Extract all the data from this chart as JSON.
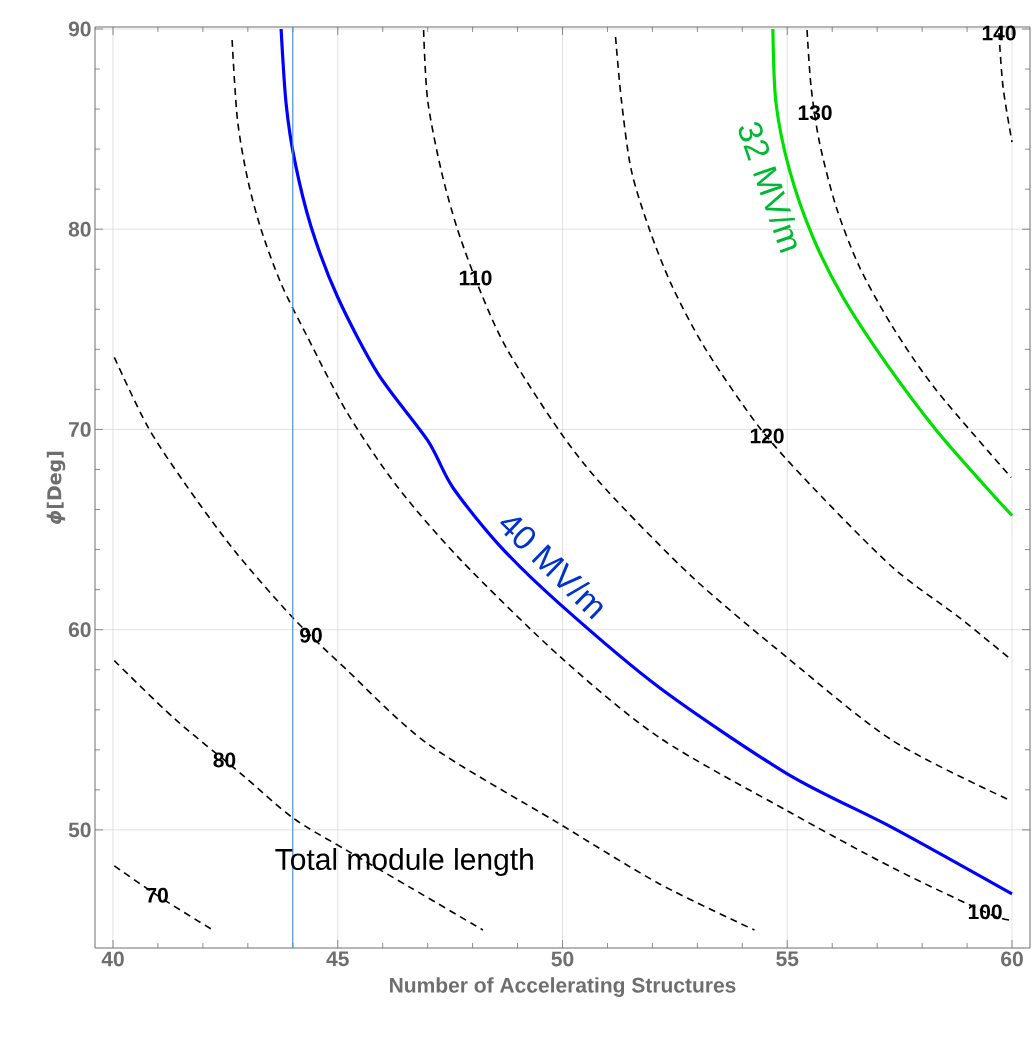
{
  "chart_data": {
    "type": "line",
    "xlabel": "Number of Accelerating Structures",
    "ylabel": "*ϕ*[Deg]",
    "xlim": [
      39.6,
      60.4
    ],
    "ylim": [
      44.1,
      90.1
    ],
    "xticks": [
      40,
      45,
      50,
      55,
      60
    ],
    "yticks": [
      50,
      60,
      70,
      80,
      90
    ],
    "grid": true,
    "marker": "none",
    "series": [
      {
        "name": "70",
        "color": "#000000",
        "line_style": "dashed",
        "x": [
          40.03,
          41.07,
          42.22
        ],
        "values": [
          48.2,
          46.6,
          45.0
        ]
      },
      {
        "name": "80",
        "color": "#000000",
        "line_style": "dashed",
        "x": [
          40.03,
          41.37,
          42.85,
          44.0,
          45.22,
          46.63,
          48.23
        ],
        "values": [
          58.45,
          55.55,
          52.8,
          50.6,
          48.95,
          47.1,
          45.0
        ]
      },
      {
        "name": "90",
        "color": "#000000",
        "line_style": "dashed",
        "x": [
          40.03,
          40.77,
          41.6,
          42.7,
          44.0,
          45.15,
          47.0,
          49.86,
          52.16,
          54.27
        ],
        "values": [
          73.6,
          70.15,
          67.3,
          63.95,
          60.6,
          58.1,
          54.3,
          50.4,
          47.3,
          45.0
        ]
      },
      {
        "name": "100",
        "color": "#000000",
        "line_style": "dashed",
        "x": [
          42.65,
          42.77,
          43.0,
          43.3,
          43.74,
          44.33,
          45.22,
          46.34,
          47.75,
          49.97,
          52.16,
          55.0,
          57.35,
          59.5,
          60.0
        ],
        "values": [
          89.45,
          85.45,
          82.45,
          79.95,
          77.28,
          74.6,
          70.8,
          67.1,
          63.45,
          58.6,
          54.6,
          50.95,
          48.1,
          45.8,
          45.5
        ]
      },
      {
        "name": "110",
        "color": "#000000",
        "line_style": "dashed",
        "x": [
          46.91,
          47.0,
          47.3,
          47.67,
          48.19,
          48.78,
          49.97,
          50.97,
          52.9,
          55.0,
          57.35,
          59.98
        ],
        "values": [
          89.95,
          86.45,
          82.95,
          79.95,
          76.8,
          73.95,
          69.8,
          67.0,
          62.6,
          58.6,
          54.45,
          51.45
        ]
      },
      {
        "name": "120",
        "color": "#000000",
        "line_style": "dashed",
        "x": [
          51.18,
          51.31,
          51.53,
          51.94,
          52.45,
          53.2,
          54.38,
          55.57,
          57.35,
          58.83,
          59.98
        ],
        "values": [
          89.6,
          86.45,
          82.95,
          79.95,
          77.1,
          73.95,
          70.1,
          67.1,
          63.1,
          60.6,
          58.5
        ]
      },
      {
        "name": "130",
        "color": "#000000",
        "line_style": "dashed",
        "x": [
          55.44,
          55.53,
          55.72,
          56.09,
          56.61,
          57.35,
          58.32,
          59.98
        ],
        "values": [
          89.95,
          87.1,
          84.3,
          81.1,
          78.1,
          75.1,
          71.95,
          67.6
        ]
      },
      {
        "name": "140",
        "color": "#000000",
        "line_style": "dashed",
        "x": [
          59.71,
          59.8,
          60.0
        ],
        "values": [
          89.8,
          87.1,
          84.35
        ]
      },
      {
        "name": "40 MV/m",
        "color": "#0000ff",
        "line_style": "solid",
        "x": [
          43.74,
          43.85,
          44.04,
          44.41,
          45.0,
          45.89,
          47.0,
          47.56,
          48.6,
          49.93,
          52.16,
          55.0,
          57.35,
          60.0
        ],
        "values": [
          90.0,
          86.3,
          83.45,
          80.1,
          76.6,
          72.8,
          69.45,
          67.1,
          64.2,
          61.3,
          57.1,
          52.8,
          50.1,
          46.8
        ]
      },
      {
        "name": "32 MV/m",
        "color": "#00e000",
        "line_style": "solid",
        "x": [
          54.68,
          54.75,
          55.05,
          55.57,
          56.24,
          57.2,
          58.32,
          59.43,
          60.0
        ],
        "values": [
          90.0,
          86.3,
          82.95,
          79.6,
          76.6,
          73.3,
          69.95,
          67.1,
          65.7
        ]
      }
    ],
    "ref_lines": [
      {
        "axis": "x",
        "value": 44.0,
        "label": "Total module length",
        "color": "#4a90d9"
      }
    ]
  }
}
